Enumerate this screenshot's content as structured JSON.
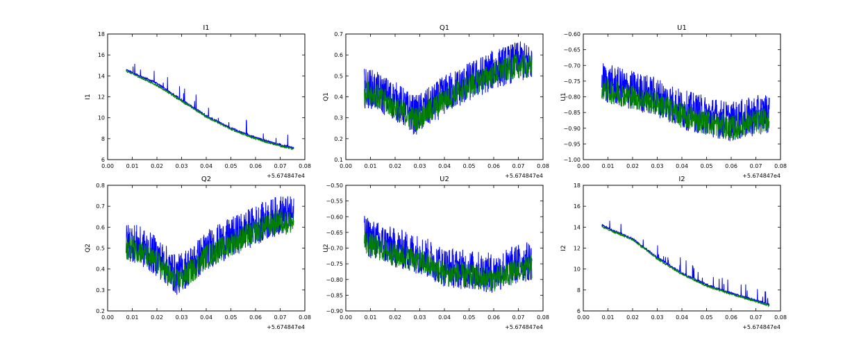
{
  "chart_data": [
    {
      "type": "line",
      "title": "I1",
      "ylabel": "I1",
      "x_offset_label": "+5.674847e4",
      "xlim": [
        0.0,
        0.08
      ],
      "ylim": [
        6,
        18
      ],
      "xticks": [
        "0.00",
        "0.01",
        "0.02",
        "0.03",
        "0.04",
        "0.05",
        "0.06",
        "0.07",
        "0.08"
      ],
      "yticks": [
        "6",
        "8",
        "10",
        "12",
        "14",
        "16",
        "18"
      ],
      "series": [
        {
          "color": "#0000ff",
          "x": [
            0.0075,
            0.01,
            0.02,
            0.03,
            0.04,
            0.05,
            0.06,
            0.07,
            0.0755
          ],
          "y": [
            14.6,
            14.3,
            13.3,
            11.7,
            10.2,
            9.0,
            8.1,
            7.4,
            7.1
          ]
        },
        {
          "color": "#008000",
          "x": [
            0.0075,
            0.01,
            0.02,
            0.03,
            0.04,
            0.05,
            0.06,
            0.07,
            0.0755
          ],
          "y": [
            14.5,
            14.2,
            13.1,
            11.6,
            10.1,
            8.9,
            8.0,
            7.3,
            7.0
          ]
        }
      ]
    },
    {
      "type": "line",
      "title": "Q1",
      "ylabel": "Q1",
      "x_offset_label": "+5.674847e4",
      "xlim": [
        0.0,
        0.08
      ],
      "ylim": [
        0.1,
        0.7
      ],
      "xticks": [
        "0.00",
        "0.01",
        "0.02",
        "0.03",
        "0.04",
        "0.05",
        "0.06",
        "0.07",
        "0.08"
      ],
      "yticks": [
        "0.1",
        "0.2",
        "0.3",
        "0.4",
        "0.5",
        "0.6",
        "0.7"
      ],
      "series": [
        {
          "color": "#0000ff",
          "x": [
            0.0075,
            0.01,
            0.02,
            0.028,
            0.035,
            0.04,
            0.05,
            0.06,
            0.07,
            0.0755
          ],
          "y": [
            0.44,
            0.44,
            0.38,
            0.31,
            0.36,
            0.41,
            0.47,
            0.53,
            0.57,
            0.56
          ]
        },
        {
          "color": "#008000",
          "x": [
            0.0075,
            0.01,
            0.02,
            0.028,
            0.035,
            0.04,
            0.05,
            0.06,
            0.07,
            0.0755
          ],
          "y": [
            0.42,
            0.42,
            0.35,
            0.29,
            0.34,
            0.39,
            0.45,
            0.51,
            0.55,
            0.54
          ]
        }
      ]
    },
    {
      "type": "line",
      "title": "U1",
      "ylabel": "U1",
      "x_offset_label": "+5.674847e4",
      "xlim": [
        0.0,
        0.08
      ],
      "ylim": [
        -1.0,
        -0.6
      ],
      "xticks": [
        "0.00",
        "0.01",
        "0.02",
        "0.03",
        "0.04",
        "0.05",
        "0.06",
        "0.07",
        "0.08"
      ],
      "yticks": [
        "−1.00",
        "−0.95",
        "−0.90",
        "−0.85",
        "−0.80",
        "−0.75",
        "−0.70",
        "−0.65",
        "−0.60"
      ],
      "series": [
        {
          "color": "#0000ff",
          "x": [
            0.0075,
            0.01,
            0.02,
            0.03,
            0.04,
            0.05,
            0.06,
            0.07,
            0.0755
          ],
          "y": [
            -0.75,
            -0.76,
            -0.78,
            -0.8,
            -0.84,
            -0.86,
            -0.88,
            -0.86,
            -0.85
          ]
        },
        {
          "color": "#008000",
          "x": [
            0.0075,
            0.01,
            0.02,
            0.03,
            0.04,
            0.05,
            0.06,
            0.07,
            0.0755
          ],
          "y": [
            -0.77,
            -0.78,
            -0.8,
            -0.82,
            -0.86,
            -0.88,
            -0.9,
            -0.88,
            -0.87
          ]
        }
      ]
    },
    {
      "type": "line",
      "title": "Q2",
      "ylabel": "Q2",
      "x_offset_label": "+5.674847e4",
      "xlim": [
        0.0,
        0.08
      ],
      "ylim": [
        0.2,
        0.8
      ],
      "xticks": [
        "0.00",
        "0.01",
        "0.02",
        "0.03",
        "0.04",
        "0.05",
        "0.06",
        "0.07",
        "0.08"
      ],
      "yticks": [
        "0.2",
        "0.3",
        "0.4",
        "0.5",
        "0.6",
        "0.7",
        "0.8"
      ],
      "series": [
        {
          "color": "#0000ff",
          "x": [
            0.0075,
            0.01,
            0.02,
            0.028,
            0.035,
            0.04,
            0.05,
            0.06,
            0.07,
            0.0755
          ],
          "y": [
            0.52,
            0.53,
            0.46,
            0.37,
            0.43,
            0.49,
            0.55,
            0.61,
            0.66,
            0.65
          ]
        },
        {
          "color": "#008000",
          "x": [
            0.0075,
            0.01,
            0.02,
            0.028,
            0.035,
            0.04,
            0.05,
            0.06,
            0.07,
            0.0755
          ],
          "y": [
            0.5,
            0.51,
            0.43,
            0.34,
            0.4,
            0.46,
            0.52,
            0.58,
            0.63,
            0.62
          ]
        }
      ]
    },
    {
      "type": "line",
      "title": "U2",
      "ylabel": "U2",
      "x_offset_label": "+5.674847e4",
      "xlim": [
        0.0,
        0.08
      ],
      "ylim": [
        -0.9,
        -0.5
      ],
      "xticks": [
        "0.00",
        "0.01",
        "0.02",
        "0.03",
        "0.04",
        "0.05",
        "0.06",
        "0.07",
        "0.08"
      ],
      "yticks": [
        "−0.90",
        "−0.85",
        "−0.80",
        "−0.75",
        "−0.70",
        "−0.65",
        "−0.60",
        "−0.55",
        "−0.50"
      ],
      "series": [
        {
          "color": "#0000ff",
          "x": [
            0.0075,
            0.01,
            0.02,
            0.03,
            0.04,
            0.05,
            0.06,
            0.07,
            0.0755
          ],
          "y": [
            -0.66,
            -0.67,
            -0.7,
            -0.72,
            -0.76,
            -0.77,
            -0.78,
            -0.75,
            -0.74
          ]
        },
        {
          "color": "#008000",
          "x": [
            0.0075,
            0.01,
            0.02,
            0.03,
            0.04,
            0.05,
            0.06,
            0.07,
            0.0755
          ],
          "y": [
            -0.68,
            -0.69,
            -0.72,
            -0.74,
            -0.78,
            -0.79,
            -0.8,
            -0.77,
            -0.76
          ]
        }
      ]
    },
    {
      "type": "line",
      "title": "I2",
      "ylabel": "I2",
      "x_offset_label": "+5.674847e4",
      "xlim": [
        0.0,
        0.08
      ],
      "ylim": [
        6,
        18
      ],
      "xticks": [
        "0.00",
        "0.01",
        "0.02",
        "0.03",
        "0.04",
        "0.05",
        "0.06",
        "0.07",
        "0.08"
      ],
      "yticks": [
        "6",
        "8",
        "10",
        "12",
        "14",
        "16",
        "18"
      ],
      "series": [
        {
          "color": "#0000ff",
          "x": [
            0.0075,
            0.01,
            0.02,
            0.03,
            0.04,
            0.05,
            0.06,
            0.07,
            0.0755
          ],
          "y": [
            14.2,
            13.9,
            12.9,
            11.1,
            9.6,
            8.5,
            7.7,
            7.0,
            6.6
          ]
        },
        {
          "color": "#008000",
          "x": [
            0.0075,
            0.01,
            0.02,
            0.03,
            0.04,
            0.05,
            0.06,
            0.07,
            0.0755
          ],
          "y": [
            14.1,
            13.8,
            12.8,
            11.0,
            9.5,
            8.4,
            7.6,
            6.9,
            6.5
          ]
        }
      ]
    }
  ]
}
